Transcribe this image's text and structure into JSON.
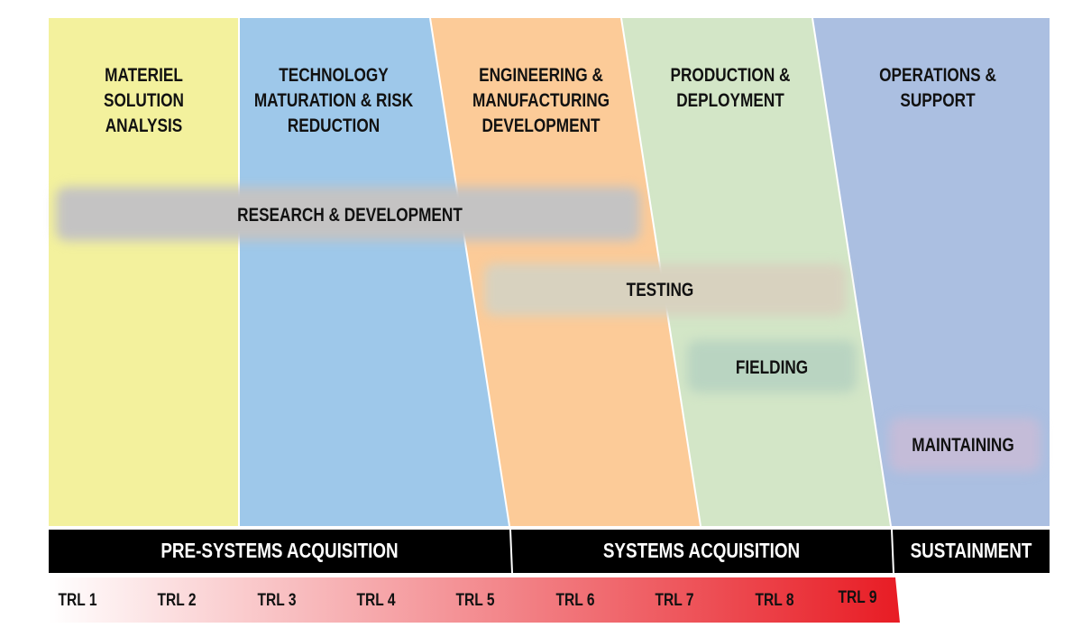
{
  "phases": [
    {
      "label": "MATERIEL\nSOLUTION\nANALYSIS",
      "color": "#f3f19d"
    },
    {
      "label": "TECHNOLOGY\nMATURATION & RISK\nREDUCTION",
      "color": "#9ec8ea"
    },
    {
      "label": "ENGINEERING &\nMANUFACTURING\nDEVELOPMENT",
      "color": "#fccb98"
    },
    {
      "label": "PRODUCTION &\nDEPLOYMENT",
      "color": "#d3e6c7"
    },
    {
      "label": "OPERATIONS & SUPPORT",
      "color": "#abbfe1"
    }
  ],
  "activities": [
    {
      "label": "RESEARCH & DEVELOPMENT",
      "color": "#c4c3c3"
    },
    {
      "label": "TESTING",
      "color": "#d8d2bf"
    },
    {
      "label": "FIELDING",
      "color": "#b9d4c1"
    },
    {
      "label": "MAINTAINING",
      "color": "#c4bcd8"
    }
  ],
  "stages": [
    "PRE-SYSTEMS ACQUISITION",
    "SYSTEMS ACQUISITION",
    "SUSTAINMENT"
  ],
  "trl": [
    "TRL 1",
    "TRL 2",
    "TRL 3",
    "TRL 4",
    "TRL 5",
    "TRL 6",
    "TRL 7",
    "TRL 8",
    "TRL 9"
  ],
  "trl_gradient": [
    "#ffffff",
    "#e81c24"
  ]
}
